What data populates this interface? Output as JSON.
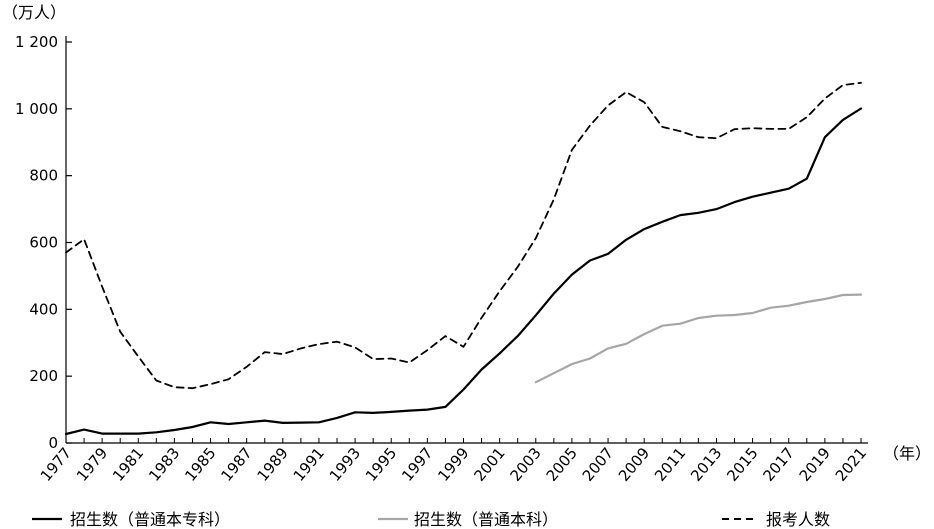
{
  "chart_data": {
    "type": "line",
    "ylabel": "（万人）",
    "xlabel": "（年）",
    "ylim": [
      0,
      1200
    ],
    "xlim": [
      1977,
      2021
    ],
    "y_ticks": [
      0,
      200,
      400,
      600,
      800,
      1000,
      1200
    ],
    "y_tick_labels": [
      "0",
      "200",
      "400",
      "600",
      "800",
      "1 000",
      "1 200"
    ],
    "x_ticks": [
      1977,
      1979,
      1981,
      1983,
      1985,
      1987,
      1989,
      1991,
      1993,
      1995,
      1997,
      1999,
      2001,
      2003,
      2005,
      2007,
      2009,
      2011,
      2013,
      2015,
      2017,
      2019,
      2021
    ],
    "x_tick_labels": [
      "1977",
      "1979",
      "1981",
      "1983",
      "1985",
      "1987",
      "1989",
      "1991",
      "1993",
      "1995",
      "1997",
      "1999",
      "2001",
      "2003",
      "2005",
      "2007",
      "2009",
      "2011",
      "2013",
      "2015",
      "2017",
      "2019",
      "2021"
    ],
    "grid": false,
    "legend_position": "bottom",
    "series": [
      {
        "name": "招生数（普通本专科）",
        "style": "solid",
        "color": "#000000",
        "x": [
          1977,
          1978,
          1979,
          1980,
          1981,
          1982,
          1983,
          1984,
          1985,
          1986,
          1987,
          1988,
          1989,
          1990,
          1991,
          1992,
          1993,
          1994,
          1995,
          1996,
          1997,
          1998,
          1999,
          2000,
          2001,
          2002,
          2003,
          2004,
          2005,
          2006,
          2007,
          2008,
          2009,
          2010,
          2011,
          2012,
          2013,
          2014,
          2015,
          2016,
          2017,
          2018,
          2019,
          2020,
          2021
        ],
        "values": [
          27,
          40,
          28,
          28,
          28,
          32,
          39,
          48,
          62,
          57,
          62,
          67,
          60,
          61,
          62,
          75,
          92,
          90,
          93,
          97,
          100,
          108,
          160,
          220,
          268,
          320,
          382,
          447,
          504,
          546,
          566,
          608,
          640,
          662,
          682,
          689,
          700,
          721,
          737,
          749,
          761,
          791,
          915,
          967,
          1001
        ]
      },
      {
        "name": "招生数（普通本科）",
        "style": "solid",
        "color": "#a6a6a6",
        "x": [
          2003,
          2004,
          2005,
          2006,
          2007,
          2008,
          2009,
          2010,
          2011,
          2012,
          2013,
          2014,
          2015,
          2016,
          2017,
          2018,
          2019,
          2020,
          2021
        ],
        "values": [
          182,
          209,
          236,
          253,
          283,
          297,
          326,
          351,
          357,
          374,
          381,
          383,
          389,
          405,
          411,
          422,
          431,
          443,
          444
        ]
      },
      {
        "name": "报考人数",
        "style": "dashed",
        "color": "#000000",
        "x": [
          1977,
          1978,
          1979,
          1980,
          1981,
          1982,
          1983,
          1984,
          1985,
          1986,
          1987,
          1988,
          1989,
          1990,
          1991,
          1992,
          1993,
          1994,
          1995,
          1996,
          1997,
          1998,
          1999,
          2000,
          2001,
          2002,
          2003,
          2004,
          2005,
          2006,
          2007,
          2008,
          2009,
          2010,
          2011,
          2012,
          2013,
          2014,
          2015,
          2016,
          2017,
          2018,
          2019,
          2020,
          2021
        ],
        "values": [
          570,
          610,
          468,
          333,
          259,
          187,
          167,
          164,
          176,
          191,
          228,
          272,
          266,
          283,
          296,
          303,
          286,
          251,
          253,
          241,
          278,
          320,
          288,
          375,
          454,
          527,
          613,
          729,
          877,
          950,
          1010,
          1050,
          1020,
          946,
          933,
          915,
          912,
          939,
          942,
          940,
          940,
          975,
          1031,
          1071,
          1078
        ]
      }
    ]
  }
}
